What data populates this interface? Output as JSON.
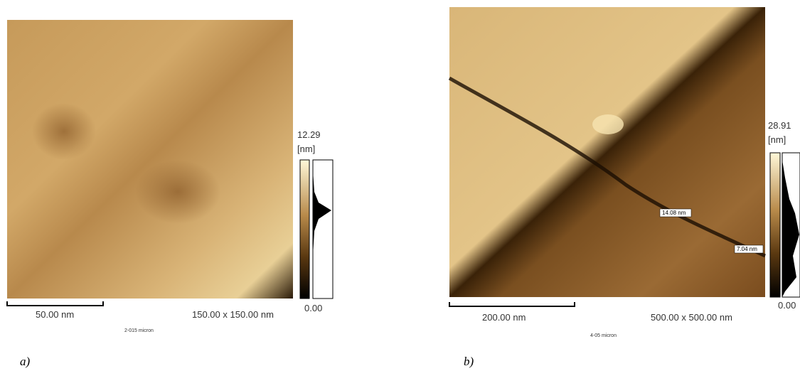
{
  "panels": [
    {
      "label": "a)",
      "colorbar_max": "12.29",
      "colorbar_unit": "[nm]",
      "colorbar_min": "0.00",
      "scale_bar": "50.00 nm",
      "scan_size": "150.00 x 150.00 nm",
      "caption": "2-015 micron"
    },
    {
      "label": "b)",
      "colorbar_max": "28.91",
      "colorbar_unit": "[nm]",
      "colorbar_min": "0.00",
      "scale_bar": "200.00 nm",
      "scan_size": "500.00 x 500.00 nm",
      "caption": "4-05 micron",
      "annotations": [
        "14.08 nm",
        "7.04 nm"
      ]
    }
  ]
}
